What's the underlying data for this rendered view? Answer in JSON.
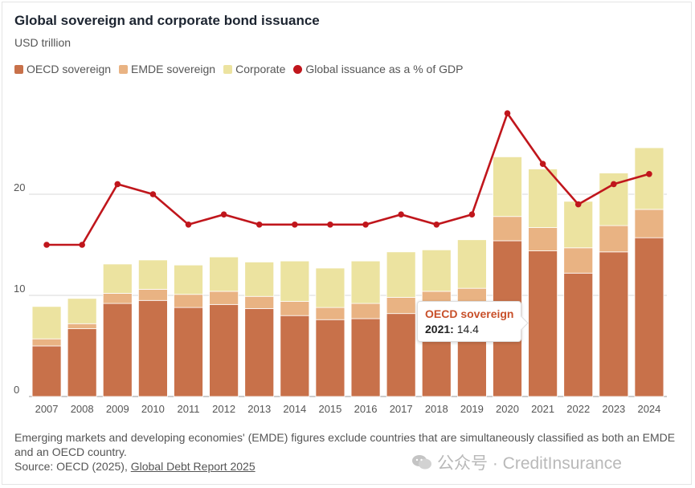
{
  "title": "Global sovereign and corporate bond issuance",
  "subtitle": "USD trillion",
  "legend": [
    {
      "label": "OECD sovereign",
      "color": "#c8714a",
      "marker": "square"
    },
    {
      "label": "EMDE sovereign",
      "color": "#e9b383",
      "marker": "square"
    },
    {
      "label": "Corporate",
      "color": "#ece3a0",
      "marker": "square"
    },
    {
      "label": "Global issuance as a % of GDP",
      "color": "#c0161c",
      "marker": "dot"
    }
  ],
  "footnote": {
    "note": "Emerging markets and developing economies' (EMDE) figures exclude countries that are simultaneously classified as both an EMDE and an OECD country.",
    "source_prefix": "Source: OECD (2025), ",
    "source_link": "Global Debt Report 2025"
  },
  "tooltip": {
    "series": "OECD sovereign",
    "year": "2021:",
    "value": "14.4"
  },
  "watermark": "公众号 · CreditInsurance",
  "chart_data": {
    "type": "bar",
    "stacked": true,
    "categories": [
      "2007",
      "2008",
      "2009",
      "2010",
      "2011",
      "2012",
      "2013",
      "2014",
      "2015",
      "2016",
      "2017",
      "2018",
      "2019",
      "2020",
      "2021",
      "2022",
      "2023",
      "2024"
    ],
    "series": [
      {
        "name": "OECD sovereign",
        "color": "#c8714a",
        "values": [
          5.0,
          6.7,
          9.2,
          9.5,
          8.8,
          9.1,
          8.7,
          8.0,
          7.6,
          7.7,
          8.2,
          8.2,
          8.9,
          15.4,
          14.4,
          12.2,
          14.3,
          15.7
        ]
      },
      {
        "name": "EMDE sovereign",
        "color": "#e9b383",
        "values": [
          0.7,
          0.5,
          1.0,
          1.1,
          1.3,
          1.3,
          1.2,
          1.4,
          1.2,
          1.5,
          1.6,
          2.2,
          1.8,
          2.4,
          2.3,
          2.5,
          2.6,
          2.8
        ]
      },
      {
        "name": "Corporate",
        "color": "#ece3a0",
        "values": [
          3.2,
          2.5,
          2.9,
          2.9,
          2.9,
          3.4,
          3.4,
          4.0,
          3.9,
          4.2,
          4.5,
          4.1,
          4.8,
          5.9,
          5.8,
          4.6,
          5.2,
          6.1
        ]
      },
      {
        "name": "Global issuance as a % of GDP",
        "type": "line",
        "color": "#c0161c",
        "values": [
          15,
          15,
          21,
          20,
          17,
          18,
          17,
          17,
          17,
          17,
          18,
          17,
          18,
          28,
          23,
          19,
          21,
          22
        ]
      }
    ],
    "y_ticks": [
      0,
      10,
      20
    ],
    "ylim": [
      0,
      30
    ],
    "grid": true,
    "legend_position": "top-left"
  }
}
